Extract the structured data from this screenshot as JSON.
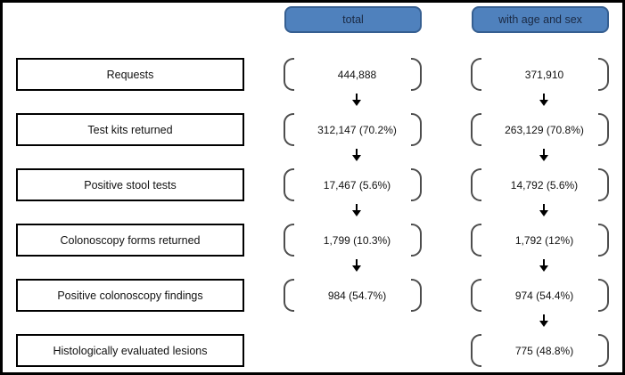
{
  "diagram": {
    "type": "flowchart",
    "columns": [
      {
        "id": "total",
        "label": "total"
      },
      {
        "id": "with_age_and_sex",
        "label": "with age and sex"
      }
    ],
    "rows": [
      {
        "label": "Requests",
        "total": "444,888",
        "with_age_and_sex": "371,910"
      },
      {
        "label": "Test kits returned",
        "total": "312,147 (70.2%)",
        "with_age_and_sex": "263,129 (70.8%)"
      },
      {
        "label": "Positive stool tests",
        "total": "17,467 (5.6%)",
        "with_age_and_sex": "14,792 (5.6%)"
      },
      {
        "label": "Colonoscopy forms returned",
        "total": "1,799 (10.3%)",
        "with_age_and_sex": "1,792 (12%)"
      },
      {
        "label": "Positive colonoscopy findings",
        "total": "984 (54.7%)",
        "with_age_and_sex": "974 (54.4%)"
      },
      {
        "label": "Histologically evaluated lesions",
        "total": "",
        "with_age_and_sex": "775 (48.8%)"
      }
    ],
    "colors": {
      "header_fill": "#4f81bd",
      "header_border": "#365f91",
      "header_text": "#1b2a44",
      "bracket": "#4d4d4d",
      "label_box_border": "#000000",
      "arrow": "#000000",
      "frame": "#000000",
      "background": "#ffffff"
    }
  }
}
